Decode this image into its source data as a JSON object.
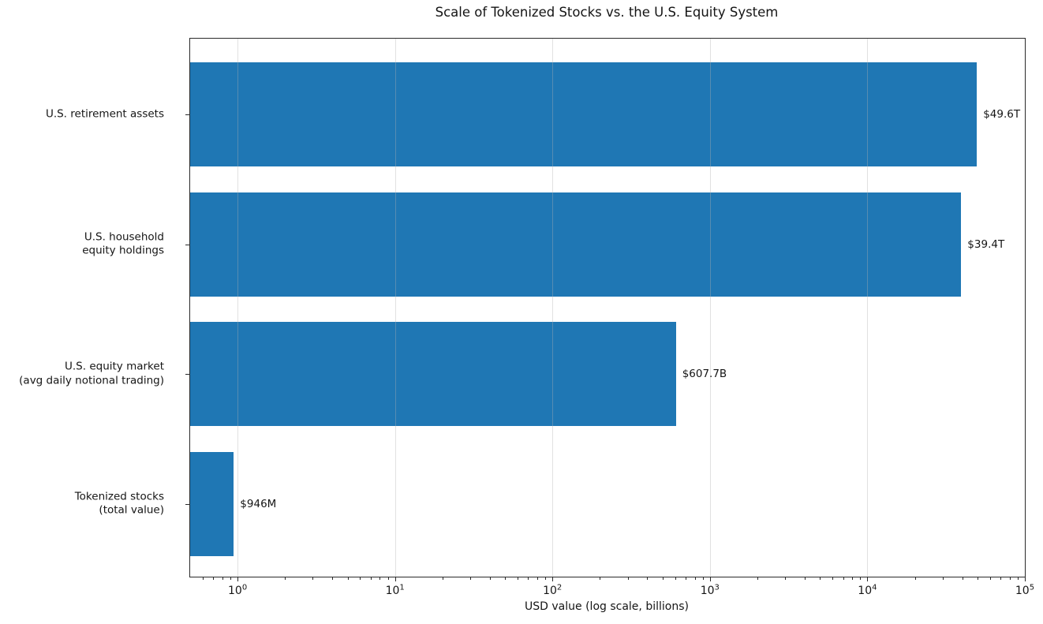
{
  "chart_data": {
    "type": "bar",
    "orientation": "horizontal",
    "title": "Scale of Tokenized Stocks vs. the U.S. Equity System",
    "xlabel": "USD value (log scale, billions)",
    "x_scale": "log",
    "xlim_billions": [
      0.5,
      100000
    ],
    "x_major_tick_exponents": [
      0,
      1,
      2,
      3,
      4,
      5
    ],
    "x_tick_base": "10",
    "grid": "major-x-only",
    "legend": "none",
    "bar_color": "#1f77b4",
    "categories": [
      [
        "U.S. retirement assets"
      ],
      [
        "U.S. household",
        "equity holdings"
      ],
      [
        "U.S. equity market",
        "(avg daily notional trading)"
      ],
      [
        "Tokenized stocks",
        "(total value)"
      ]
    ],
    "values_billions": [
      49600,
      39400,
      607.7,
      0.946
    ],
    "value_labels": [
      "$49.6T",
      "$39.4T",
      "$607.7B",
      "$946M"
    ]
  }
}
